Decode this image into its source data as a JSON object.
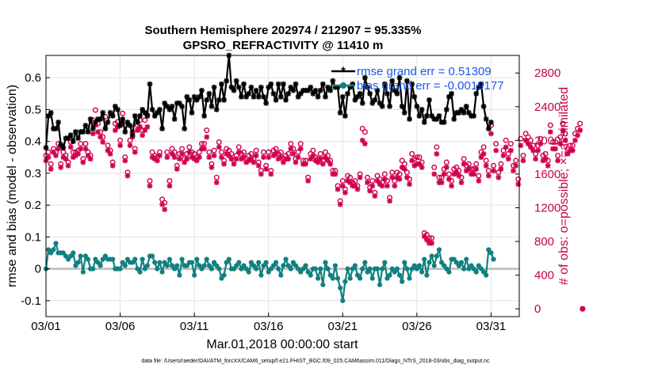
{
  "colors": {
    "rmse": "#000000",
    "bias": "#108080",
    "obs": "#d0004e",
    "legend_text": "#1a56e8",
    "zero_line": "#bbbbbb"
  },
  "chart_data": {
    "type": "line",
    "title": [
      "Southern Hemisphere 202974 / 212907 = 95.335%",
      "GPSRO_REFRACTIVITY @ 11410 m"
    ],
    "xlabel": "Mar.01,2018 00:00:00 start",
    "ylabel": "rmse and bias (model - observation)",
    "y2label": "# of obs: o=possible; ×=assimilated",
    "footnote": "data file: /Users/raeder/DAI/ATM_forcXX/CAM6_setup/f.e21.FHIST_BGC.f09_025.CAM6assim.011/Diags_NTrS_2018-03/obs_diag_output.nc",
    "xlim": [
      0,
      31.9
    ],
    "ylim": [
      -0.15,
      0.67
    ],
    "y2lim": [
      -92,
      3009
    ],
    "xticks": [
      0,
      5,
      10,
      15,
      20,
      25,
      30
    ],
    "xtick_labels": [
      "03/01",
      "03/06",
      "03/11",
      "03/16",
      "03/21",
      "03/26",
      "03/31"
    ],
    "yticks": [
      -0.1,
      0,
      0.1,
      0.2,
      0.3,
      0.4,
      0.5,
      0.6
    ],
    "ytick_labels": [
      "-0.1",
      "0",
      "0.1",
      "0.2",
      "0.3",
      "0.4",
      "0.5",
      "0.6"
    ],
    "y2ticks": [
      0,
      400,
      800,
      1200,
      1600,
      2000,
      2400,
      2800
    ],
    "y2tick_labels": [
      "0",
      "400",
      "800",
      "1200",
      "1600",
      "2000",
      "2400",
      "2800"
    ],
    "legend_location": "top-right",
    "series": [
      {
        "name": "rmse",
        "label": "rmse grand err = 0.51309",
        "axis": "left",
        "marker": "star",
        "color": "#000000",
        "values": [
          0.38,
          0.48,
          0.49,
          0.44,
          0.44,
          0.46,
          0.39,
          0.38,
          0.41,
          0.41,
          0.42,
          0.4,
          0.43,
          0.41,
          0.43,
          0.43,
          0.45,
          0.43,
          0.47,
          0.44,
          0.46,
          0.47,
          0.47,
          0.49,
          0.44,
          0.46,
          0.49,
          0.48,
          0.51,
          0.5,
          0.45,
          0.47,
          0.43,
          0.46,
          0.45,
          0.42,
          0.48,
          0.46,
          0.48,
          0.5,
          0.49,
          0.48,
          0.58,
          0.5,
          0.48,
          0.49,
          0.5,
          0.44,
          0.52,
          0.51,
          0.5,
          0.51,
          0.47,
          0.52,
          0.52,
          0.51,
          0.44,
          0.54,
          0.53,
          0.49,
          0.54,
          0.53,
          0.54,
          0.56,
          0.48,
          0.53,
          0.55,
          0.51,
          0.57,
          0.5,
          0.53,
          0.58,
          0.53,
          0.59,
          0.67,
          0.57,
          0.56,
          0.59,
          0.57,
          0.54,
          0.58,
          0.54,
          0.55,
          0.57,
          0.54,
          0.56,
          0.54,
          0.57,
          0.54,
          0.52,
          0.57,
          0.58,
          0.55,
          0.53,
          0.58,
          0.54,
          0.58,
          0.53,
          0.55,
          0.57,
          0.56,
          0.58,
          0.54,
          0.55,
          0.56,
          0.56,
          0.56,
          0.57,
          0.55,
          0.56,
          0.54,
          0.56,
          0.58,
          0.54,
          0.57,
          0.56,
          0.59,
          0.57,
          0.57,
          0.49,
          0.54,
          0.48,
          0.55,
          0.57,
          0.58,
          0.53,
          0.54,
          0.55,
          0.52,
          0.6,
          0.57,
          0.55,
          0.52,
          0.53,
          0.56,
          0.52,
          0.51,
          0.58,
          0.55,
          0.51,
          0.59,
          0.56,
          0.55,
          0.6,
          0.51,
          0.49,
          0.59,
          0.47,
          0.58,
          0.54,
          0.51,
          0.48,
          0.5,
          0.46,
          0.48,
          0.53,
          0.48,
          0.47,
          0.47,
          0.48,
          0.46,
          0.46,
          0.5,
          0.54,
          0.55,
          0.47,
          0.49,
          0.49,
          0.5,
          0.49,
          0.51,
          0.49,
          0.48,
          0.48,
          0.55,
          0.57,
          0.58,
          0.51,
          0.47,
          0.44,
          0.46
        ]
      },
      {
        "name": "bias",
        "label": "bias grand err = -0.0019177",
        "axis": "left",
        "marker": "circle",
        "color": "#108080",
        "values": [
          0.0,
          0.06,
          0.05,
          0.06,
          0.08,
          0.05,
          0.05,
          0.05,
          0.04,
          0.03,
          0.04,
          0.05,
          0.01,
          0.02,
          0.04,
          -0.01,
          0.04,
          0.03,
          0.0,
          0.0,
          0.03,
          0.02,
          0.01,
          0.03,
          0.04,
          0.03,
          0.03,
          0.03,
          0.0,
          0.0,
          0.0,
          0.02,
          0.01,
          0.03,
          0.02,
          0.02,
          0.03,
          0.0,
          -0.01,
          0.03,
          0.0,
          0.01,
          0.04,
          0.04,
          0.02,
          0.0,
          0.02,
          -0.01,
          0.02,
          0.01,
          0.03,
          0.01,
          0.0,
          0.01,
          -0.02,
          0.03,
          0.01,
          0.01,
          0.02,
          0.02,
          -0.02,
          0.03,
          0.01,
          0.0,
          0.01,
          0.03,
          0.01,
          0.0,
          0.02,
          0.01,
          0.0,
          -0.03,
          -0.02,
          0.02,
          0.03,
          0.0,
          0.0,
          0.01,
          0.02,
          0.0,
          0.01,
          0.0,
          -0.01,
          0.02,
          0.01,
          0.0,
          0.02,
          -0.02,
          0.01,
          0.02,
          -0.01,
          0.0,
          0.01,
          0.02,
          0.0,
          -0.02,
          0.01,
          0.03,
          0.01,
          0.0,
          0.02,
          0.01,
          0.0,
          -0.01,
          0.0,
          0.01,
          -0.01,
          -0.02,
          0.0,
          0.0,
          -0.03,
          0.0,
          -0.05,
          0.02,
          0.0,
          -0.02,
          -0.03,
          0.01,
          -0.03,
          -0.06,
          -0.1,
          -0.04,
          0.0,
          -0.03,
          0.0,
          0.01,
          -0.02,
          -0.03,
          0.0,
          0.02,
          -0.01,
          0.0,
          -0.03,
          0.0,
          0.0,
          -0.05,
          0.0,
          0.02,
          -0.03,
          -0.02,
          0.0,
          -0.01,
          0.0,
          -0.02,
          -0.04,
          0.02,
          0.0,
          -0.03,
          0.0,
          0.01,
          0.0,
          0.01,
          -0.01,
          0.03,
          -0.02,
          0.02,
          0.04,
          0.01,
          0.04,
          0.06,
          0.02,
          0.01,
          0.0,
          -0.01,
          0.03,
          0.03,
          0.02,
          0.01,
          0.02,
          0.0,
          0.03,
          0.0,
          0.01,
          0.0,
          -0.01,
          0.01,
          0.0,
          -0.01,
          -0.02,
          0.06,
          0.05,
          0.03
        ]
      },
      {
        "name": "possible",
        "axis": "right",
        "marker": "circle-open",
        "color": "#d0004e",
        "values": [
          1820,
          1860,
          1720,
          1900,
          1860,
          1960,
          1720,
          1860,
          1820,
          1740,
          1980,
          1860,
          1860,
          1880,
          1960,
          1780,
          1960,
          1860,
          1820,
          2240,
          2360,
          2200,
          2100,
          2040,
          2280,
          1940,
          1880,
          1740,
          2200,
          2220,
          2000,
          2320,
          1800,
          1620,
          2000,
          2100,
          1900,
          2180,
          2240,
          2120,
          2240,
          2300,
          1520,
          1860,
          1820,
          1800,
          1860,
          1300,
          1260,
          1860,
          1520,
          1900,
          1860,
          1700,
          1840,
          1900,
          1780,
          1840,
          1920,
          1860,
          1840,
          1800,
          1860,
          1960,
          1960,
          2120,
          1860,
          1720,
          1880,
          1560,
          1980,
          1860,
          1760,
          1900,
          1880,
          1840,
          1760,
          1820,
          1920,
          1840,
          1860,
          1780,
          1820,
          1840,
          1780,
          1880,
          1740,
          1640,
          1860,
          1700,
          1860,
          1640,
          1880,
          1900,
          1840,
          1860,
          1780,
          1820,
          1840,
          1960,
          1900,
          1780,
          1860,
          1960,
          1760,
          1760,
          1560,
          1840,
          1880,
          1800,
          1780,
          1840,
          1760,
          1860,
          1820,
          1760,
          1640,
          1640,
          1460,
          1280,
          1520,
          1420,
          1580,
          1560,
          1500,
          1520,
          1460,
          1600,
          2140,
          2100,
          1560,
          1440,
          1520,
          1380,
          1580,
          1540,
          1500,
          1600,
          1520,
          1320,
          1620,
          1520,
          1620,
          1600,
          1760,
          1720,
          1620,
          1540,
          1840,
          1780,
          1800,
          1800,
          1740,
          900,
          880,
          840,
          840,
          1680,
          1920,
          1560,
          1560,
          1660,
          1740,
          1600,
          1520,
          1660,
          1680,
          1640,
          1560,
          1780,
          1700,
          1720,
          1660,
          1660,
          1720,
          1580,
          1860,
          1920,
          1760,
          1640,
          2180,
          1700,
          1960,
          1620,
          1720,
          1880,
          2000,
          1840,
          1960,
          1700,
          1760,
          1540,
          2020,
          1820,
          2080,
          2040,
          2000,
          1940,
          1840,
          1940,
          2020,
          1820,
          1840,
          1760,
          2180,
          1980,
          1980,
          1820,
          2040,
          2200,
          2080,
          1900,
          1940,
          1940,
          2080,
          2140,
          2200,
          0
        ]
      },
      {
        "name": "assimilated",
        "axis": "right",
        "marker": "star",
        "color": "#d0004e",
        "values": [
          1760,
          1800,
          1660,
          1860,
          1820,
          1900,
          1680,
          1800,
          1780,
          1700,
          1920,
          1800,
          1820,
          1840,
          1900,
          1740,
          1900,
          1820,
          1780,
          2080,
          2180,
          2100,
          2040,
          1980,
          2140,
          1880,
          1840,
          1700,
          2120,
          2160,
          1940,
          2200,
          1760,
          1580,
          1940,
          2040,
          1860,
          2120,
          2160,
          2060,
          2120,
          2160,
          1460,
          1800,
          1780,
          1760,
          1820,
          1240,
          1180,
          1800,
          1460,
          1840,
          1800,
          1660,
          1780,
          1840,
          1740,
          1780,
          1860,
          1800,
          1780,
          1760,
          1800,
          1900,
          1900,
          2040,
          1800,
          1680,
          1820,
          1500,
          1920,
          1800,
          1720,
          1840,
          1820,
          1780,
          1720,
          1780,
          1860,
          1780,
          1800,
          1740,
          1760,
          1780,
          1740,
          1820,
          1700,
          1600,
          1800,
          1660,
          1800,
          1600,
          1820,
          1840,
          1780,
          1800,
          1740,
          1780,
          1780,
          1900,
          1840,
          1740,
          1800,
          1900,
          1720,
          1720,
          1520,
          1780,
          1820,
          1760,
          1740,
          1780,
          1720,
          1800,
          1760,
          1720,
          1600,
          1600,
          1420,
          1240,
          1460,
          1380,
          1520,
          1500,
          1460,
          1460,
          1420,
          1560,
          2000,
          1960,
          1500,
          1400,
          1460,
          1340,
          1520,
          1480,
          1460,
          1540,
          1460,
          1280,
          1560,
          1460,
          1560,
          1540,
          1680,
          1660,
          1560,
          1480,
          1760,
          1700,
          1720,
          1720,
          1680,
          860,
          820,
          780,
          780,
          1600,
          1840,
          1500,
          1500,
          1600,
          1680,
          1540,
          1460,
          1600,
          1620,
          1580,
          1500,
          1720,
          1640,
          1660,
          1600,
          1600,
          1660,
          1520,
          1800,
          1840,
          1700,
          1580,
          2080,
          1640,
          1880,
          1560,
          1660,
          1820,
          1920,
          1780,
          1880,
          1640,
          1700,
          1480,
          1940,
          1760,
          2000,
          1960,
          1920,
          1880,
          1780,
          1880,
          1960,
          1760,
          1780,
          1700,
          2100,
          1900,
          1900,
          1760,
          1960,
          2120,
          2000,
          1840,
          1880,
          1880,
          2000,
          2060,
          2120,
          0
        ]
      }
    ]
  }
}
